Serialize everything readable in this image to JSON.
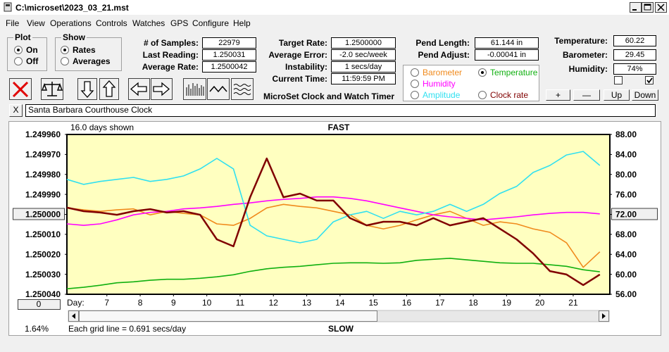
{
  "window": {
    "title": "C:\\microset\\2023_03_21.mst"
  },
  "menu": [
    "File",
    "View",
    "Operations",
    "Controls",
    "Watches",
    "GPS",
    "Configure",
    "Help"
  ],
  "plot": {
    "title": "Plot",
    "options": [
      "On",
      "Off"
    ],
    "checked": "On"
  },
  "show": {
    "title": "Show",
    "options": [
      "Rates",
      "Averages"
    ],
    "checked": "Rates"
  },
  "stats": [
    {
      "label": "# of Samples:",
      "value": "22979"
    },
    {
      "label": "Last Reading:",
      "value": "1.250031"
    },
    {
      "label": "Average Rate:",
      "value": "1.2500042"
    }
  ],
  "rates": [
    {
      "label": "Target Rate:",
      "value": "1.2500000"
    },
    {
      "label": "Average Error:",
      "value": "-2.0 sec/week"
    },
    {
      "label": "Instability:",
      "value": "1 secs/day"
    },
    {
      "label": "Current Time:",
      "value": "11:59:59 PM"
    }
  ],
  "pend": [
    {
      "label": "Pend Length:",
      "value": "61.144 in"
    },
    {
      "label": "Pend Adjust:",
      "value": "-0.00041 in"
    }
  ],
  "environment": [
    {
      "label": "Temperature:",
      "value": "60.22"
    },
    {
      "label": "Barometer:",
      "value": "29.45"
    },
    {
      "label": "Humidity:",
      "value": "74%"
    }
  ],
  "buttons": [
    "+",
    "—",
    "Up",
    "Down"
  ],
  "app_title": "MicroSet Clock and Watch Timer",
  "close_button": "X",
  "description": "Santa Barbara Courthouse Clock",
  "chart_data": {
    "type": "line",
    "days_shown": "16.0 days shown",
    "top_label": "FAST",
    "bottom_label": "SLOW",
    "x_label": "Day:",
    "footer": "Each grid line = 0.691 secs/day",
    "percent": "1.64%",
    "scroll_button": "0",
    "xlim": [
      5.8,
      22.1
    ],
    "xticks": [
      7,
      8,
      9,
      10,
      11,
      12,
      13,
      14,
      15,
      16,
      17,
      18,
      19,
      20,
      21
    ],
    "ylim": [
      1.25004,
      1.24996
    ],
    "yticks": [
      {
        "value": 1.24996,
        "label": "1.249960"
      },
      {
        "value": 1.24997,
        "label": "1.249970"
      },
      {
        "value": 1.24998,
        "label": "1.249980"
      },
      {
        "value": 1.24999,
        "label": "1.249990"
      },
      {
        "value": 1.25,
        "label": "1.250000"
      },
      {
        "value": 1.25001,
        "label": "1.250010"
      },
      {
        "value": 1.25002,
        "label": "1.250020"
      },
      {
        "value": 1.25003,
        "label": "1.250030"
      },
      {
        "value": 1.25004,
        "label": "1.250040"
      }
    ],
    "y2lim": [
      56,
      88
    ],
    "y2ticks": [
      {
        "value": 56,
        "label": "56.00"
      },
      {
        "value": 60,
        "label": "60.00"
      },
      {
        "value": 64,
        "label": "64.00"
      },
      {
        "value": 68,
        "label": "68.00"
      },
      {
        "value": 72,
        "label": "72.00"
      },
      {
        "value": 76,
        "label": "76.00"
      },
      {
        "value": 80,
        "label": "80.00"
      },
      {
        "value": 84,
        "label": "84.00"
      },
      {
        "value": 88,
        "label": "88.00"
      }
    ],
    "x": [
      5.8,
      6.3,
      6.8,
      7.3,
      7.8,
      8.3,
      8.8,
      9.3,
      9.8,
      10.3,
      10.8,
      11.3,
      11.8,
      12.3,
      12.8,
      13.3,
      13.8,
      14.3,
      14.8,
      15.3,
      15.8,
      16.3,
      16.8,
      17.3,
      17.8,
      18.3,
      18.8,
      19.3,
      19.8,
      20.3,
      20.8,
      21.3,
      21.8
    ],
    "series": [
      {
        "name": "Barometer",
        "color": "#f08a1c",
        "axis": "y2",
        "selected": false,
        "values": [
          73.3,
          72.9,
          72.6,
          72.9,
          73.1,
          71.9,
          72.6,
          72.2,
          71.9,
          70.1,
          69.8,
          71.2,
          73.3,
          74.0,
          73.6,
          73.3,
          72.6,
          71.9,
          69.8,
          69.1,
          69.8,
          70.9,
          71.9,
          72.6,
          71.2,
          69.8,
          70.5,
          70.1,
          69.1,
          68.4,
          66.3,
          61.4,
          64.5
        ]
      },
      {
        "name": "Temperature",
        "color": "#10b010",
        "axis": "y2",
        "selected": true,
        "values": [
          57.1,
          57.4,
          57.8,
          58.3,
          58.5,
          58.8,
          59.0,
          59.0,
          59.2,
          59.5,
          59.9,
          60.6,
          61.1,
          61.4,
          61.6,
          61.9,
          62.2,
          62.3,
          62.3,
          62.2,
          62.3,
          62.8,
          63.0,
          63.2,
          62.9,
          62.6,
          62.3,
          62.2,
          62.2,
          61.9,
          61.6,
          60.9,
          60.5
        ]
      },
      {
        "name": "Humidity",
        "color": "#ff00ff",
        "axis": "y2",
        "selected": false,
        "values": [
          70.1,
          69.8,
          70.1,
          70.9,
          71.9,
          72.4,
          72.6,
          73.1,
          73.3,
          73.6,
          74.0,
          74.3,
          74.7,
          75.0,
          75.2,
          75.5,
          75.5,
          75.2,
          74.7,
          74.0,
          73.3,
          72.6,
          71.9,
          71.5,
          71.2,
          70.9,
          71.2,
          71.5,
          71.9,
          72.2,
          72.4,
          72.4,
          72.1
        ]
      },
      {
        "name": "Amplitude",
        "color": "#30e0f0",
        "axis": "y2",
        "selected": false,
        "values": [
          79.0,
          78.0,
          78.6,
          79.0,
          79.4,
          78.6,
          79.0,
          79.7,
          81.1,
          83.2,
          81.1,
          69.8,
          67.7,
          67.0,
          66.3,
          67.0,
          70.5,
          71.9,
          72.6,
          71.2,
          72.6,
          71.9,
          72.6,
          74.0,
          72.6,
          74.0,
          76.2,
          77.6,
          80.4,
          81.8,
          83.9,
          84.6,
          81.8
        ]
      },
      {
        "name": "Clock rate",
        "color": "#800000",
        "axis": "y",
        "selected": false,
        "values": [
          1.2499966,
          1.2499984,
          1.2499991,
          1.2500002,
          1.2499984,
          1.2499974,
          1.2499991,
          1.2499984,
          1.2500002,
          1.2500125,
          1.250016,
          1.2499914,
          1.249972,
          1.2499914,
          1.2499896,
          1.2499931,
          1.2499931,
          1.2500019,
          1.2500055,
          1.2500037,
          1.2500037,
          1.2500055,
          1.2500019,
          1.2500055,
          1.2500037,
          1.2500019,
          1.2500072,
          1.2500125,
          1.2500196,
          1.2500284,
          1.2500301,
          1.2500354,
          1.2500301
        ]
      }
    ]
  }
}
